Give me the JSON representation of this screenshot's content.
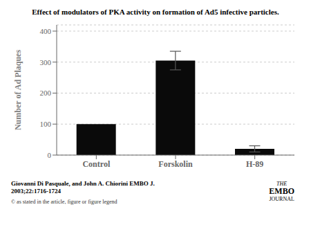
{
  "chart_data": {
    "type": "bar",
    "title": "Effect of modulators of PKA activity on formation of Ad5 infective particles.",
    "categories": [
      "Control",
      "Forskolin",
      "H-89"
    ],
    "values": [
      100,
      305,
      20
    ],
    "errors": [
      0,
      30,
      10
    ],
    "color": "#0a0a0a",
    "ylim": [
      0,
      420
    ],
    "yticks": [
      0,
      100,
      200,
      300,
      400
    ],
    "ylabel": "Number of Ad Plaques",
    "annotations": [
      "Giovanni Di Pasquale, and John A. Chiorini EMBO J.",
      "2003;22:1716-1724",
      "© as stated in the article, figure or figure legend",
      "THE",
      "EMBO",
      "JOURNAL"
    ]
  }
}
